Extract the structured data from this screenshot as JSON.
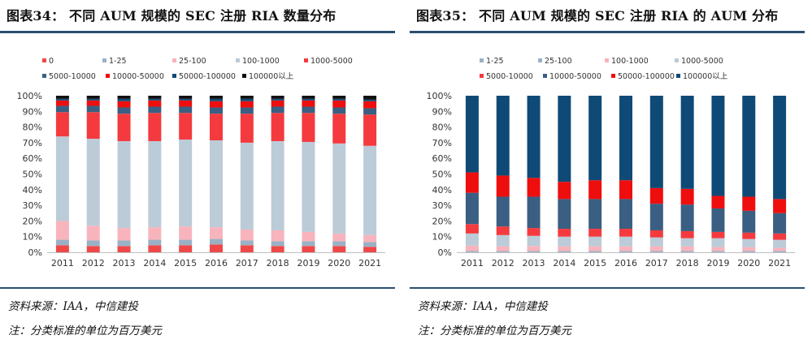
{
  "colors": {
    "accent_rule": "#2a4e70",
    "band_0": "#f04848",
    "band_1_25": "#9ab1c5",
    "band_25_100": "#f8b4bc",
    "band_100_1000": "#bccbd8",
    "band_1000_5000": "#f43a3e",
    "band_5000_10000": "#3a5f82",
    "band_10000_50000": "#ee0e0e",
    "band_50000_100000": "#0f4a77",
    "band_100000_plus": "#111111"
  },
  "panels": [
    {
      "title": "图表34： 不同 AUM 规模的 SEC 注册 RIA  数量分布",
      "source": "资料来源：IAA，中信建投",
      "note": "注：分类标准的单位为百万美元",
      "chart_data": {
        "type": "bar",
        "stacked": true,
        "percent": true,
        "title": "不同 AUM 规模的 SEC 注册 RIA 数量分布",
        "ylim": [
          0,
          100
        ],
        "yticks": [
          "0%",
          "10%",
          "20%",
          "30%",
          "40%",
          "50%",
          "60%",
          "70%",
          "80%",
          "90%",
          "100%"
        ],
        "categories": [
          "2011",
          "2012",
          "2013",
          "2014",
          "2015",
          "2016",
          "2017",
          "2018",
          "2019",
          "2020",
          "2021"
        ],
        "legend": "top",
        "series": [
          {
            "name": "0",
            "color_key": "band_0",
            "values": [
              4.5,
              4.0,
              4.0,
              4.5,
              4.5,
              5.0,
              4.5,
              4.0,
              4.0,
              4.0,
              3.5
            ]
          },
          {
            "name": "1-25",
            "color_key": "band_1_25",
            "values": [
              3.5,
              3.5,
              3.5,
              3.5,
              3.5,
              3.5,
              3.0,
              3.0,
              3.0,
              3.0,
              3.0
            ]
          },
          {
            "name": "25-100",
            "color_key": "band_25_100",
            "values": [
              12,
              9.5,
              8,
              8,
              8.5,
              7.5,
              7,
              7,
              6,
              5,
              4.5
            ]
          },
          {
            "name": "100-1000",
            "color_key": "band_100_1000",
            "values": [
              54,
              55.5,
              55.5,
              55,
              55.5,
              55.5,
              55.5,
              57,
              57.5,
              57.5,
              57
            ]
          },
          {
            "name": "1000-5000",
            "color_key": "band_1000_5000",
            "values": [
              15.5,
              17,
              17.5,
              18,
              17,
              17,
              18.5,
              18,
              18.5,
              19,
              20
            ]
          },
          {
            "name": "5000-10000",
            "color_key": "band_5000_10000",
            "values": [
              4,
              4,
              4,
              4,
              4,
              4,
              4,
              4,
              4,
              4,
              4
            ]
          },
          {
            "name": "10000-50000",
            "color_key": "band_10000_50000",
            "values": [
              3.5,
              3.5,
              4,
              4,
              4,
              4,
              4,
              4,
              4,
              4.5,
              4.5
            ]
          },
          {
            "name": "50000-100000",
            "color_key": "band_50000_100000",
            "values": [
              1.0,
              1.0,
              1.5,
              1.0,
              1.0,
              1.5,
              1.5,
              1.0,
              1.0,
              1.0,
              1.0
            ]
          },
          {
            "name": "100000以上",
            "color_key": "band_100000_plus",
            "values": [
              2.0,
              2.0,
              2.0,
              2.0,
              2.0,
              2.0,
              2.0,
              2.0,
              2.0,
              2.0,
              2.5
            ]
          }
        ]
      }
    },
    {
      "title": "图表35： 不同 AUM 规模的 SEC 注册 RIA 的 AUM 分布",
      "source": "资料来源：IAA，中信建投",
      "note": "注：分类标准的单位为百万美元",
      "chart_data": {
        "type": "bar",
        "stacked": true,
        "percent": true,
        "title": "不同 AUM 规模的 SEC 注册 RIA 的 AUM 分布",
        "ylim": [
          0,
          100
        ],
        "yticks": [
          "0%",
          "10%",
          "20%",
          "30%",
          "40%",
          "50%",
          "60%",
          "70%",
          "80%",
          "90%",
          "100%"
        ],
        "categories": [
          "2011",
          "2012",
          "2013",
          "2014",
          "2015",
          "2016",
          "2017",
          "2018",
          "2019",
          "2020",
          "2021"
        ],
        "legend": "top",
        "series": [
          {
            "name": "1-25",
            "color_key": "band_1_25",
            "values": [
              0.3,
              0.3,
              0.3,
              0.3,
              0.3,
              0.3,
              0.3,
              0.3,
              0.3,
              0.3,
              0.3
            ]
          },
          {
            "name": "25-100",
            "color_key": "band_1_25",
            "values": [
              0.5,
              0.5,
              0.5,
              0.5,
              0.5,
              0.5,
              0.5,
              0.5,
              0.5,
              0.5,
              0.5
            ]
          },
          {
            "name": "100-1000",
            "color_key": "band_25_100",
            "values": [
              3.5,
              3.0,
              3.2,
              3.0,
              3.0,
              3.0,
              3.0,
              3.0,
              2.5,
              2.5,
              2.0
            ]
          },
          {
            "name": "1000-5000",
            "color_key": "band_100_1000",
            "values": [
              7.7,
              7.2,
              6.5,
              6.2,
              6.2,
              6.2,
              5.7,
              5.2,
              5.7,
              5.2,
              5.2
            ]
          },
          {
            "name": "5000-10000",
            "color_key": "band_1000_5000",
            "values": [
              6,
              5.5,
              5,
              5,
              5,
              5,
              4.5,
              4.5,
              4,
              4,
              4
            ]
          },
          {
            "name": "10000-50000",
            "color_key": "band_5000_10000",
            "values": [
              20,
              19,
              20,
              19,
              19,
              19,
              17,
              17,
              15,
              14,
              13
            ]
          },
          {
            "name": "50000-100000",
            "color_key": "band_10000_50000",
            "values": [
              13,
              13.5,
              12,
              11,
              12,
              12,
              10,
              10,
              8,
              9,
              9
            ]
          },
          {
            "name": "100000以上",
            "color_key": "band_50000_100000",
            "values": [
              49,
              51,
              52.5,
              55,
              54,
              54,
              59,
              59.5,
              64,
              64.5,
              66
            ]
          }
        ]
      }
    }
  ]
}
